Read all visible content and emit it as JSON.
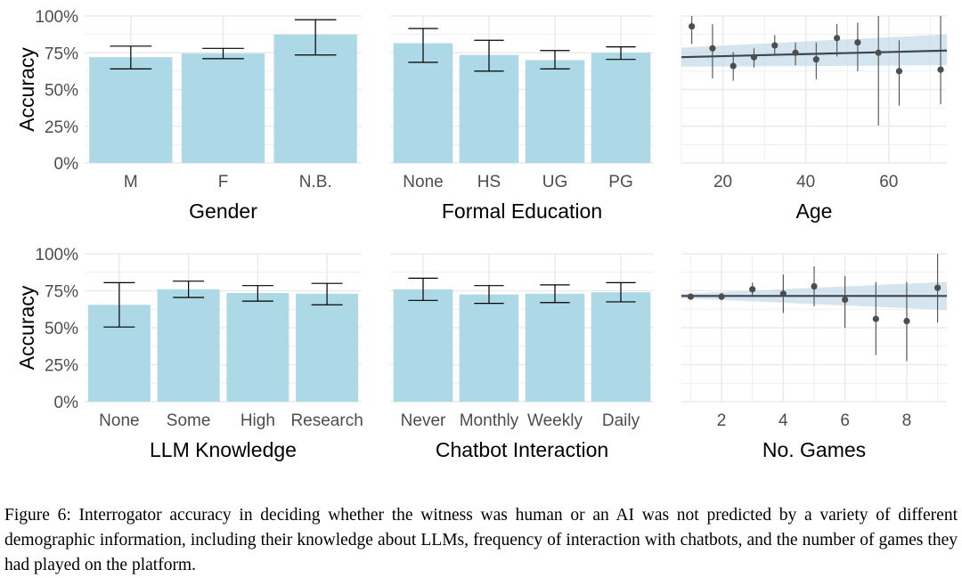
{
  "colors": {
    "bar": "#add8e6",
    "errorbar": "#000000",
    "grid": "#ebebeb",
    "point": "#4d4d4d",
    "fit_line": "#3d4450",
    "ribbon": "#c6dcea"
  },
  "shared_y": {
    "label": "Accuracy",
    "ticks": [
      "100%",
      "75%",
      "50%",
      "25%",
      "0%"
    ]
  },
  "chart_data": [
    {
      "id": "gender",
      "type": "bar",
      "xlabel": "Gender",
      "ylabel": "Accuracy",
      "ylim": [
        0,
        1
      ],
      "categories": [
        "M",
        "F",
        "N.B."
      ],
      "values": [
        0.72,
        0.745,
        0.875
      ],
      "ci_low": [
        0.64,
        0.71,
        0.735
      ],
      "ci_high": [
        0.795,
        0.78,
        0.975
      ]
    },
    {
      "id": "education",
      "type": "bar",
      "xlabel": "Formal Education",
      "ylabel": "Accuracy",
      "ylim": [
        0,
        1
      ],
      "categories": [
        "None",
        "HS",
        "UG",
        "PG"
      ],
      "values": [
        0.815,
        0.735,
        0.7,
        0.75
      ],
      "ci_low": [
        0.685,
        0.625,
        0.64,
        0.705
      ],
      "ci_high": [
        0.915,
        0.835,
        0.765,
        0.79
      ]
    },
    {
      "id": "age",
      "type": "scatter",
      "xlabel": "Age",
      "ylabel": "Accuracy",
      "ylim": [
        0,
        1
      ],
      "xlim": [
        10,
        74
      ],
      "xticks": [
        20,
        40,
        60
      ],
      "points": [
        {
          "x": 12.5,
          "y": 0.93,
          "lo": 0.81,
          "hi": 1.0
        },
        {
          "x": 17.5,
          "y": 0.78,
          "lo": 0.575,
          "hi": 0.945
        },
        {
          "x": 22.5,
          "y": 0.66,
          "lo": 0.56,
          "hi": 0.755
        },
        {
          "x": 27.5,
          "y": 0.72,
          "lo": 0.65,
          "hi": 0.78
        },
        {
          "x": 32.5,
          "y": 0.8,
          "lo": 0.73,
          "hi": 0.87
        },
        {
          "x": 37.5,
          "y": 0.75,
          "lo": 0.665,
          "hi": 0.82
        },
        {
          "x": 42.5,
          "y": 0.705,
          "lo": 0.57,
          "hi": 0.82
        },
        {
          "x": 47.5,
          "y": 0.85,
          "lo": 0.725,
          "hi": 0.945
        },
        {
          "x": 52.5,
          "y": 0.82,
          "lo": 0.625,
          "hi": 0.955
        },
        {
          "x": 57.5,
          "y": 0.75,
          "lo": 0.255,
          "hi": 1.0
        },
        {
          "x": 62.5,
          "y": 0.625,
          "lo": 0.39,
          "hi": 0.835
        },
        {
          "x": 72.5,
          "y": 0.635,
          "lo": 0.4,
          "hi": 1.0
        }
      ],
      "fit": {
        "x": [
          10,
          74
        ],
        "y": [
          0.72,
          0.765
        ],
        "lo": [
          0.655,
          0.665
        ],
        "hi": [
          0.785,
          0.875
        ]
      }
    },
    {
      "id": "llm_knowledge",
      "type": "bar",
      "xlabel": "LLM Knowledge",
      "ylabel": "Accuracy",
      "ylim": [
        0,
        1
      ],
      "categories": [
        "None",
        "Some",
        "High",
        "Research"
      ],
      "values": [
        0.655,
        0.76,
        0.735,
        0.73
      ],
      "ci_low": [
        0.505,
        0.705,
        0.68,
        0.655
      ],
      "ci_high": [
        0.805,
        0.815,
        0.785,
        0.8
      ]
    },
    {
      "id": "chatbot_interaction",
      "type": "bar",
      "xlabel": "Chatbot Interaction",
      "ylabel": "Accuracy",
      "ylim": [
        0,
        1
      ],
      "categories": [
        "Never",
        "Monthly",
        "Weekly",
        "Daily"
      ],
      "values": [
        0.76,
        0.725,
        0.73,
        0.74
      ],
      "ci_low": [
        0.685,
        0.665,
        0.67,
        0.675
      ],
      "ci_high": [
        0.835,
        0.785,
        0.79,
        0.805
      ]
    },
    {
      "id": "games",
      "type": "scatter",
      "xlabel": "No. Games",
      "ylabel": "Accuracy",
      "ylim": [
        0,
        1
      ],
      "xlim": [
        0.7,
        9.3
      ],
      "xticks": [
        2,
        4,
        6,
        8
      ],
      "points": [
        {
          "x": 1,
          "y": 0.71,
          "lo": 0.69,
          "hi": 0.73
        },
        {
          "x": 2,
          "y": 0.71,
          "lo": 0.685,
          "hi": 0.735
        },
        {
          "x": 3,
          "y": 0.76,
          "lo": 0.71,
          "hi": 0.805
        },
        {
          "x": 4,
          "y": 0.73,
          "lo": 0.6,
          "hi": 0.86
        },
        {
          "x": 5,
          "y": 0.78,
          "lo": 0.645,
          "hi": 0.915
        },
        {
          "x": 6,
          "y": 0.69,
          "lo": 0.5,
          "hi": 0.85
        },
        {
          "x": 7,
          "y": 0.56,
          "lo": 0.315,
          "hi": 0.81
        },
        {
          "x": 8,
          "y": 0.545,
          "lo": 0.275,
          "hi": 0.81
        },
        {
          "x": 9,
          "y": 0.77,
          "lo": 0.535,
          "hi": 1.0
        }
      ],
      "fit": {
        "x": [
          0.7,
          9.3
        ],
        "y": [
          0.715,
          0.715
        ],
        "lo": [
          0.7,
          0.62
        ],
        "hi": [
          0.73,
          0.81
        ]
      }
    }
  ],
  "caption": "Figure 6: Interrogator accuracy in deciding whether the witness was human or an AI was not predicted by a variety of different demographic information, including their knowledge about LLMs, frequency of interaction with chatbots, and the number of games they had played on the platform."
}
